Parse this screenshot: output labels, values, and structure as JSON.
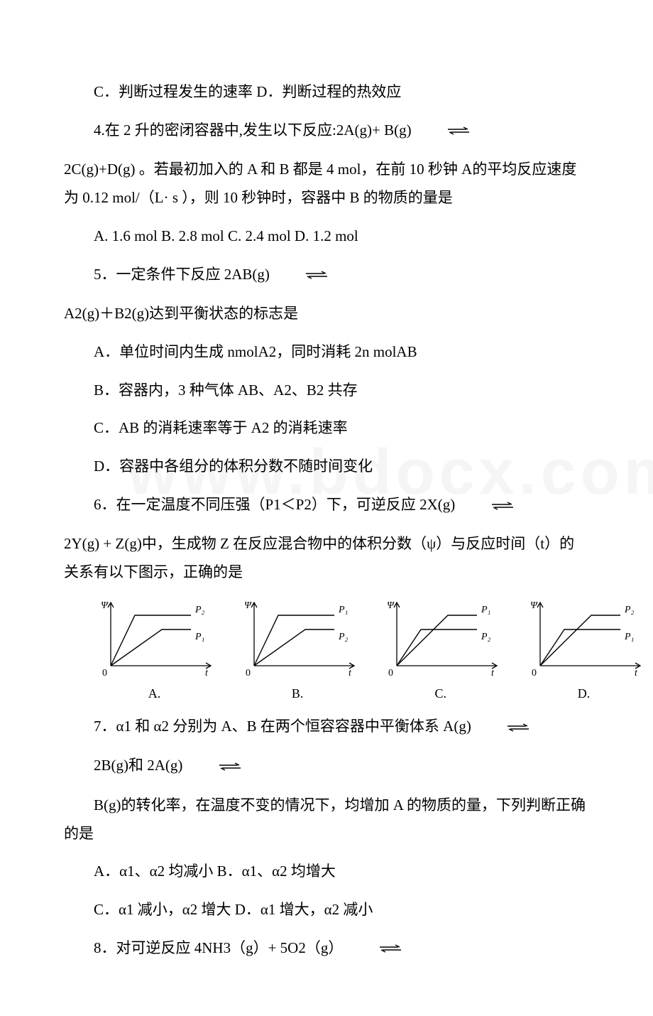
{
  "q3_cd": "C．判断过程发生的速率 D．判断过程的热效应",
  "q4_stem": "4.在 2 升的密闭容器中,发生以下反应:2A(g)+ B(g)",
  "q4_body": " 2C(g)+D(g) 。若最初加入的 A 和 B 都是 4 mol，在前 10 秒钟 A的平均反应速度为 0.12 mol/（L· s ），则 10 秒钟时，容器中 B 的物质的量是",
  "q4_opts": "A. 1.6 mol  B. 2.8 mol  C. 2.4 mol  D. 1.2 mol",
  "q5_stem": "5．一定条件下反应 2AB(g)",
  "q5_body": " A2(g)＋B2(g)达到平衡状态的标志是",
  "q5_a": "A．单位时间内生成 nmolA2，同时消耗 2n molAB",
  "q5_b": "B．容器内，3 种气体 AB、A2、B2 共存",
  "q5_c": "C．AB 的消耗速率等于 A2 的消耗速率",
  "q5_d": "D．容器中各组分的体积分数不随时间变化",
  "q6_stem": "6．在一定温度不同压强（P1＜P2）下，可逆反应 2X(g)",
  "q6_body": " 2Y(g) + Z(g)中，生成物 Z 在反应混合物中的体积分数（ψ）与反应时间（t）的关系有以下图示，正确的是",
  "q7_stem": "7．α1 和 α2 分别为 A、B 在两个恒容容器中平衡体系 A(g)",
  "q7_mid": "2B(g)和 2A(g)",
  "q7_body": "B(g)的转化率，在温度不变的情况下，均增加 A 的物质的量，下列判断正确的是",
  "q7_ab": "A．α1、α2 均减小 B．α1、α2 均增大",
  "q7_cd": "C．α1 减小，α2 增大 D．α1 增大，α2 减小",
  "q8_stem": "8．对可逆反应 4NH3（g）+ 5O2（g）",
  "charts": {
    "ylabel": "Ψ",
    "xlabel": "t",
    "axis_color": "#000000",
    "line_color": "#000000",
    "font": "italic 14px Times",
    "width": 175,
    "height": 115,
    "series": [
      {
        "label": "A.",
        "top": "P₂",
        "bottom": "P₁",
        "top_fast": true
      },
      {
        "label": "B.",
        "top": "P₁",
        "bottom": "P₂",
        "top_fast": true
      },
      {
        "label": "C.",
        "top": "P₁",
        "bottom": "P₂",
        "top_fast": false
      },
      {
        "label": "D.",
        "top": "P₂",
        "bottom": "P₁",
        "top_fast": false
      }
    ]
  },
  "watermark": "www.bdocx.com"
}
